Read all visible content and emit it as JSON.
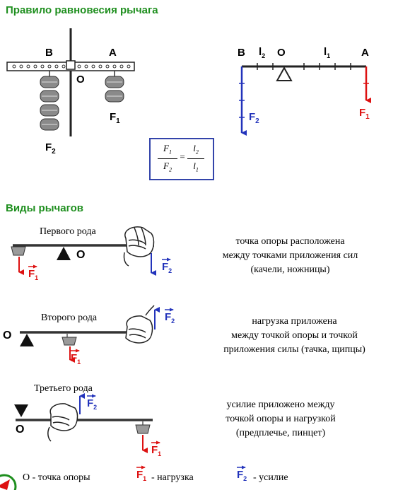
{
  "section1": {
    "title": "Правило равновесия рычага",
    "left_figure": {
      "label_b": "В",
      "label_a": "А",
      "label_o": "О",
      "label_f1": "F",
      "label_f1_sub": "1",
      "label_f2": "F",
      "label_f2_sub": "2"
    },
    "right_figure": {
      "label_b": "В",
      "label_l2": "l",
      "label_l2_sub": "2",
      "label_o": "О",
      "label_l1": "l",
      "label_l1_sub": "1",
      "label_a": "А",
      "label_f2": "F",
      "label_f2_sub": "2",
      "label_f1": "F",
      "label_f1_sub": "1"
    },
    "formula": {
      "lhs_num": "F",
      "lhs_num_sub": "1",
      "lhs_den": "F",
      "lhs_den_sub": "2",
      "eq": "=",
      "rhs_num": "l",
      "rhs_num_sub": "2",
      "rhs_den": "l",
      "rhs_den_sub": "1"
    }
  },
  "section2": {
    "title": "Виды рычагов",
    "first": {
      "label": "Первого рода",
      "o": "О",
      "f1": "F",
      "f1_sub": "1",
      "f2": "F",
      "f2_sub": "2",
      "desc": [
        "точка опоры расположена",
        "между точками приложения сил",
        "(качели, ножницы)"
      ]
    },
    "second": {
      "label": "Второго рода",
      "o": "О",
      "f1": "F",
      "f1_sub": "1",
      "f2": "F",
      "f2_sub": "2",
      "desc": [
        "нагрузка приложена",
        "между точкой опоры и точкой",
        "приложения силы (тачка, щипцы)"
      ]
    },
    "third": {
      "label": "Третьего рода",
      "o": "О",
      "f1": "F",
      "f1_sub": "1",
      "f2": "F",
      "f2_sub": "2",
      "desc": [
        "усилие приложено между",
        "точкой опоры и нагрузкой",
        "(предплечье, пинцет)"
      ]
    }
  },
  "legend": {
    "o_text": "О - точка опоры",
    "f1": "F",
    "f1_sub": "1",
    "f1_text": "- нагрузка",
    "f2": "F",
    "f2_sub": "2",
    "f2_text": "- усилие"
  },
  "colors": {
    "heading": "#1f8f1f",
    "red": "#dd1111",
    "blue": "#2233bb",
    "weight": "#7a7a7a",
    "formula_border": "#3344aa"
  }
}
